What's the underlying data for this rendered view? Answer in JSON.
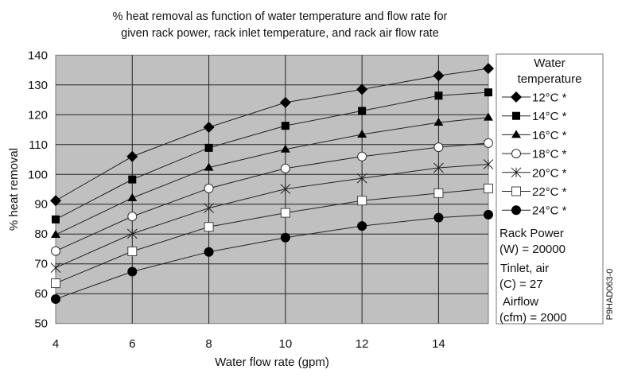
{
  "chart_data": {
    "type": "line",
    "title": [
      "% heat removal as function of water temperature and flow rate for",
      "given rack power, rack inlet temperature, and rack air flow rate"
    ],
    "xlabel": "Water flow rate (gpm)",
    "ylabel": "% heat removal",
    "xlim": [
      4,
      15.3
    ],
    "ylim": [
      50,
      140
    ],
    "xticks": [
      4,
      6,
      8,
      10,
      12,
      14
    ],
    "yticks": [
      50,
      60,
      70,
      80,
      90,
      100,
      110,
      120,
      130,
      140
    ],
    "grid": true,
    "plot_background": "#c0c0c0",
    "legend_placement": "right",
    "legend_title": [
      "Water",
      "temperature"
    ],
    "x": [
      4,
      6,
      8,
      10,
      12,
      14,
      15.3
    ],
    "series": [
      {
        "name": "12°C *",
        "marker": "diamond",
        "values": [
          91.2,
          106.0,
          115.8,
          124.1,
          128.5,
          133.1,
          135.5
        ]
      },
      {
        "name": "14°C *",
        "marker": "filled-square",
        "values": [
          84.9,
          98.3,
          108.9,
          116.3,
          121.3,
          126.4,
          127.5
        ]
      },
      {
        "name": "16°C *",
        "marker": "triangle",
        "values": [
          79.8,
          92.1,
          102.3,
          108.4,
          113.4,
          117.4,
          119.1
        ]
      },
      {
        "name": "18°C *",
        "marker": "open-circle",
        "values": [
          74.3,
          85.9,
          95.3,
          102.0,
          106.0,
          109.1,
          110.5
        ]
      },
      {
        "name": "20°C *",
        "marker": "asterisk",
        "values": [
          68.7,
          80.1,
          88.7,
          95.1,
          98.7,
          102.2,
          103.4
        ]
      },
      {
        "name": "22°C *",
        "marker": "open-square",
        "values": [
          63.5,
          74.2,
          82.4,
          87.1,
          91.2,
          93.7,
          95.3
        ]
      },
      {
        "name": "24°C *",
        "marker": "filled-circle",
        "values": [
          58.2,
          67.4,
          74.0,
          78.8,
          82.7,
          85.5,
          86.5
        ]
      }
    ],
    "annotations": [
      [
        "Rack Power",
        "(W) = 20000"
      ],
      [
        "Tinlet, air",
        "(C) = 27"
      ],
      [
        "Airflow",
        "(cfm) = 2000"
      ]
    ],
    "figure_id": "P9HAD063-0"
  }
}
